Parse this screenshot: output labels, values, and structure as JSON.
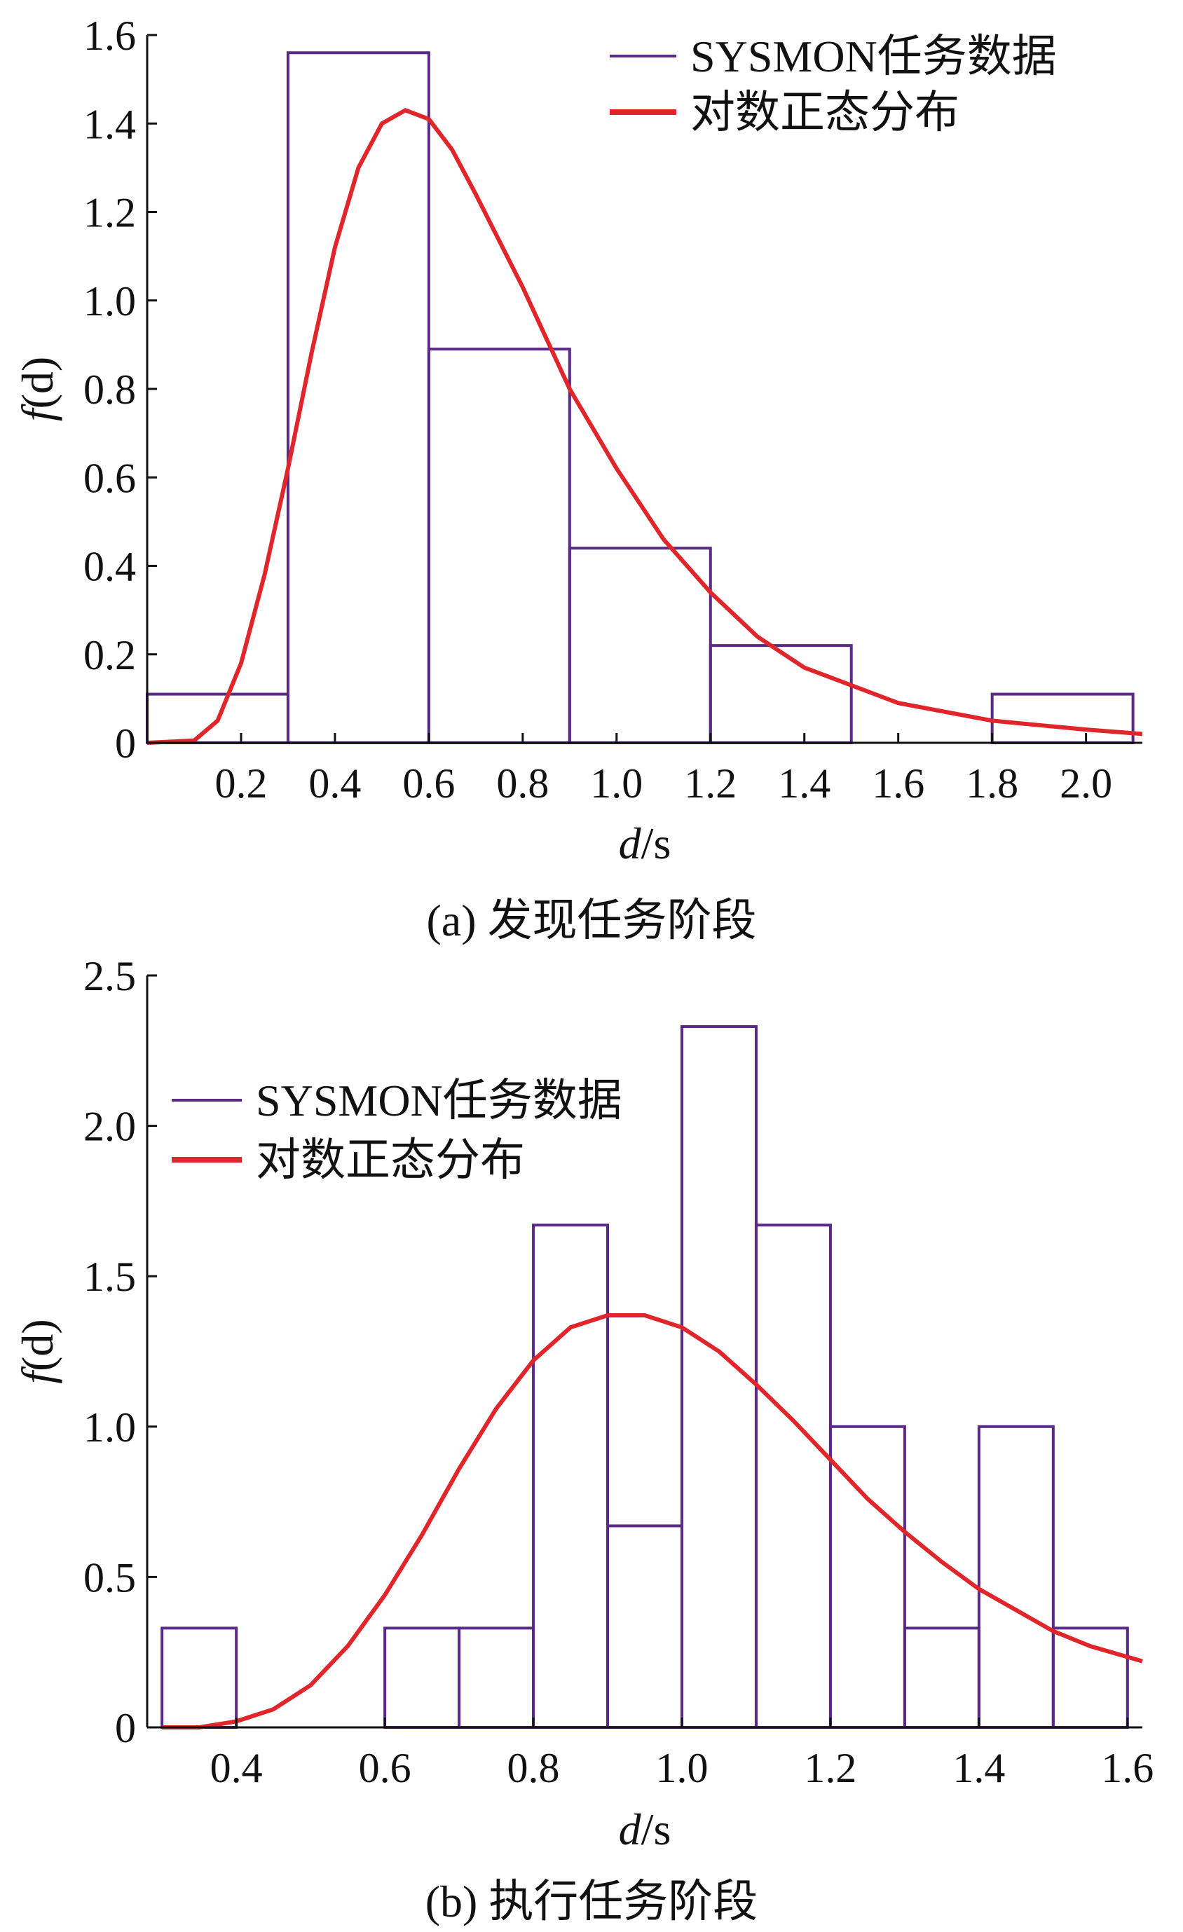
{
  "colors": {
    "histogram": "#5b2a86",
    "curve": "#e0262b",
    "axis": "#111111"
  },
  "chart_data": [
    {
      "type": "bar",
      "caption": "(a) 发现任务阶段",
      "xlabel_var": "d",
      "xlabel_unit": "/s",
      "ylabel_f": "f",
      "ylabel_arg": "(d)",
      "xlim": [
        0.0,
        2.12
      ],
      "ylim": [
        0,
        1.6
      ],
      "xticks": [
        "0.2",
        "0.4",
        "0.6",
        "0.8",
        "1.0",
        "1.2",
        "1.4",
        "1.6",
        "1.8",
        "2.0"
      ],
      "xtick_values": [
        0.2,
        0.4,
        0.6,
        0.8,
        1.0,
        1.2,
        1.4,
        1.6,
        1.8,
        2.0
      ],
      "yticks": [
        "0",
        "0.2",
        "0.4",
        "0.6",
        "0.8",
        "1.0",
        "1.2",
        "1.4",
        "1.6"
      ],
      "ytick_values": [
        0,
        0.2,
        0.4,
        0.6,
        0.8,
        1.0,
        1.2,
        1.4,
        1.6
      ],
      "legend_position": "top-right",
      "histogram": {
        "name": "SYSMON任务数据",
        "bin_edges": [
          0.0,
          0.3,
          0.6,
          0.9,
          1.2,
          1.5,
          1.8,
          2.1
        ],
        "values": [
          0.11,
          1.56,
          0.89,
          0.44,
          0.22,
          0.0,
          0.11
        ]
      },
      "curve": {
        "name": "对数正态分布",
        "x": [
          0.0,
          0.1,
          0.15,
          0.2,
          0.25,
          0.3,
          0.35,
          0.4,
          0.45,
          0.5,
          0.55,
          0.6,
          0.65,
          0.7,
          0.8,
          0.9,
          1.0,
          1.1,
          1.2,
          1.3,
          1.4,
          1.5,
          1.6,
          1.7,
          1.8,
          1.9,
          2.0,
          2.12
        ],
        "y": [
          0.0,
          0.005,
          0.05,
          0.18,
          0.38,
          0.62,
          0.88,
          1.12,
          1.3,
          1.4,
          1.43,
          1.41,
          1.34,
          1.24,
          1.03,
          0.8,
          0.62,
          0.46,
          0.34,
          0.24,
          0.17,
          0.13,
          0.09,
          0.07,
          0.05,
          0.04,
          0.03,
          0.02
        ]
      }
    },
    {
      "type": "bar",
      "caption": "(b) 执行任务阶段",
      "xlabel_var": "d",
      "xlabel_unit": "/s",
      "ylabel_f": "f",
      "ylabel_arg": "(d)",
      "xlim": [
        0.28,
        1.62
      ],
      "ylim": [
        0,
        2.5
      ],
      "xticks": [
        "0.4",
        "0.6",
        "0.8",
        "1.0",
        "1.2",
        "1.4",
        "1.6"
      ],
      "xtick_values": [
        0.4,
        0.6,
        0.8,
        1.0,
        1.2,
        1.4,
        1.6
      ],
      "yticks": [
        "0",
        "0.5",
        "1.0",
        "1.5",
        "2.0",
        "2.5"
      ],
      "ytick_values": [
        0,
        0.5,
        1.0,
        1.5,
        2.0,
        2.5
      ],
      "legend_position": "top-left",
      "histogram": {
        "name": "SYSMON任务数据",
        "bin_edges": [
          0.3,
          0.4,
          0.5,
          0.6,
          0.7,
          0.8,
          0.9,
          1.0,
          1.1,
          1.2,
          1.3,
          1.4,
          1.5,
          1.6
        ],
        "values": [
          0.33,
          0.0,
          0.0,
          0.33,
          0.33,
          1.67,
          0.67,
          2.33,
          1.67,
          1.0,
          0.33,
          1.0,
          0.33
        ]
      },
      "curve": {
        "name": "对数正态分布",
        "x": [
          0.3,
          0.35,
          0.4,
          0.45,
          0.5,
          0.55,
          0.6,
          0.65,
          0.7,
          0.75,
          0.8,
          0.85,
          0.9,
          0.95,
          1.0,
          1.05,
          1.1,
          1.15,
          1.2,
          1.25,
          1.3,
          1.35,
          1.4,
          1.45,
          1.5,
          1.55,
          1.62
        ],
        "y": [
          0.0,
          0.0,
          0.02,
          0.06,
          0.14,
          0.27,
          0.44,
          0.64,
          0.86,
          1.06,
          1.22,
          1.33,
          1.37,
          1.37,
          1.33,
          1.25,
          1.14,
          1.02,
          0.89,
          0.76,
          0.65,
          0.55,
          0.46,
          0.39,
          0.32,
          0.27,
          0.22
        ]
      }
    }
  ]
}
